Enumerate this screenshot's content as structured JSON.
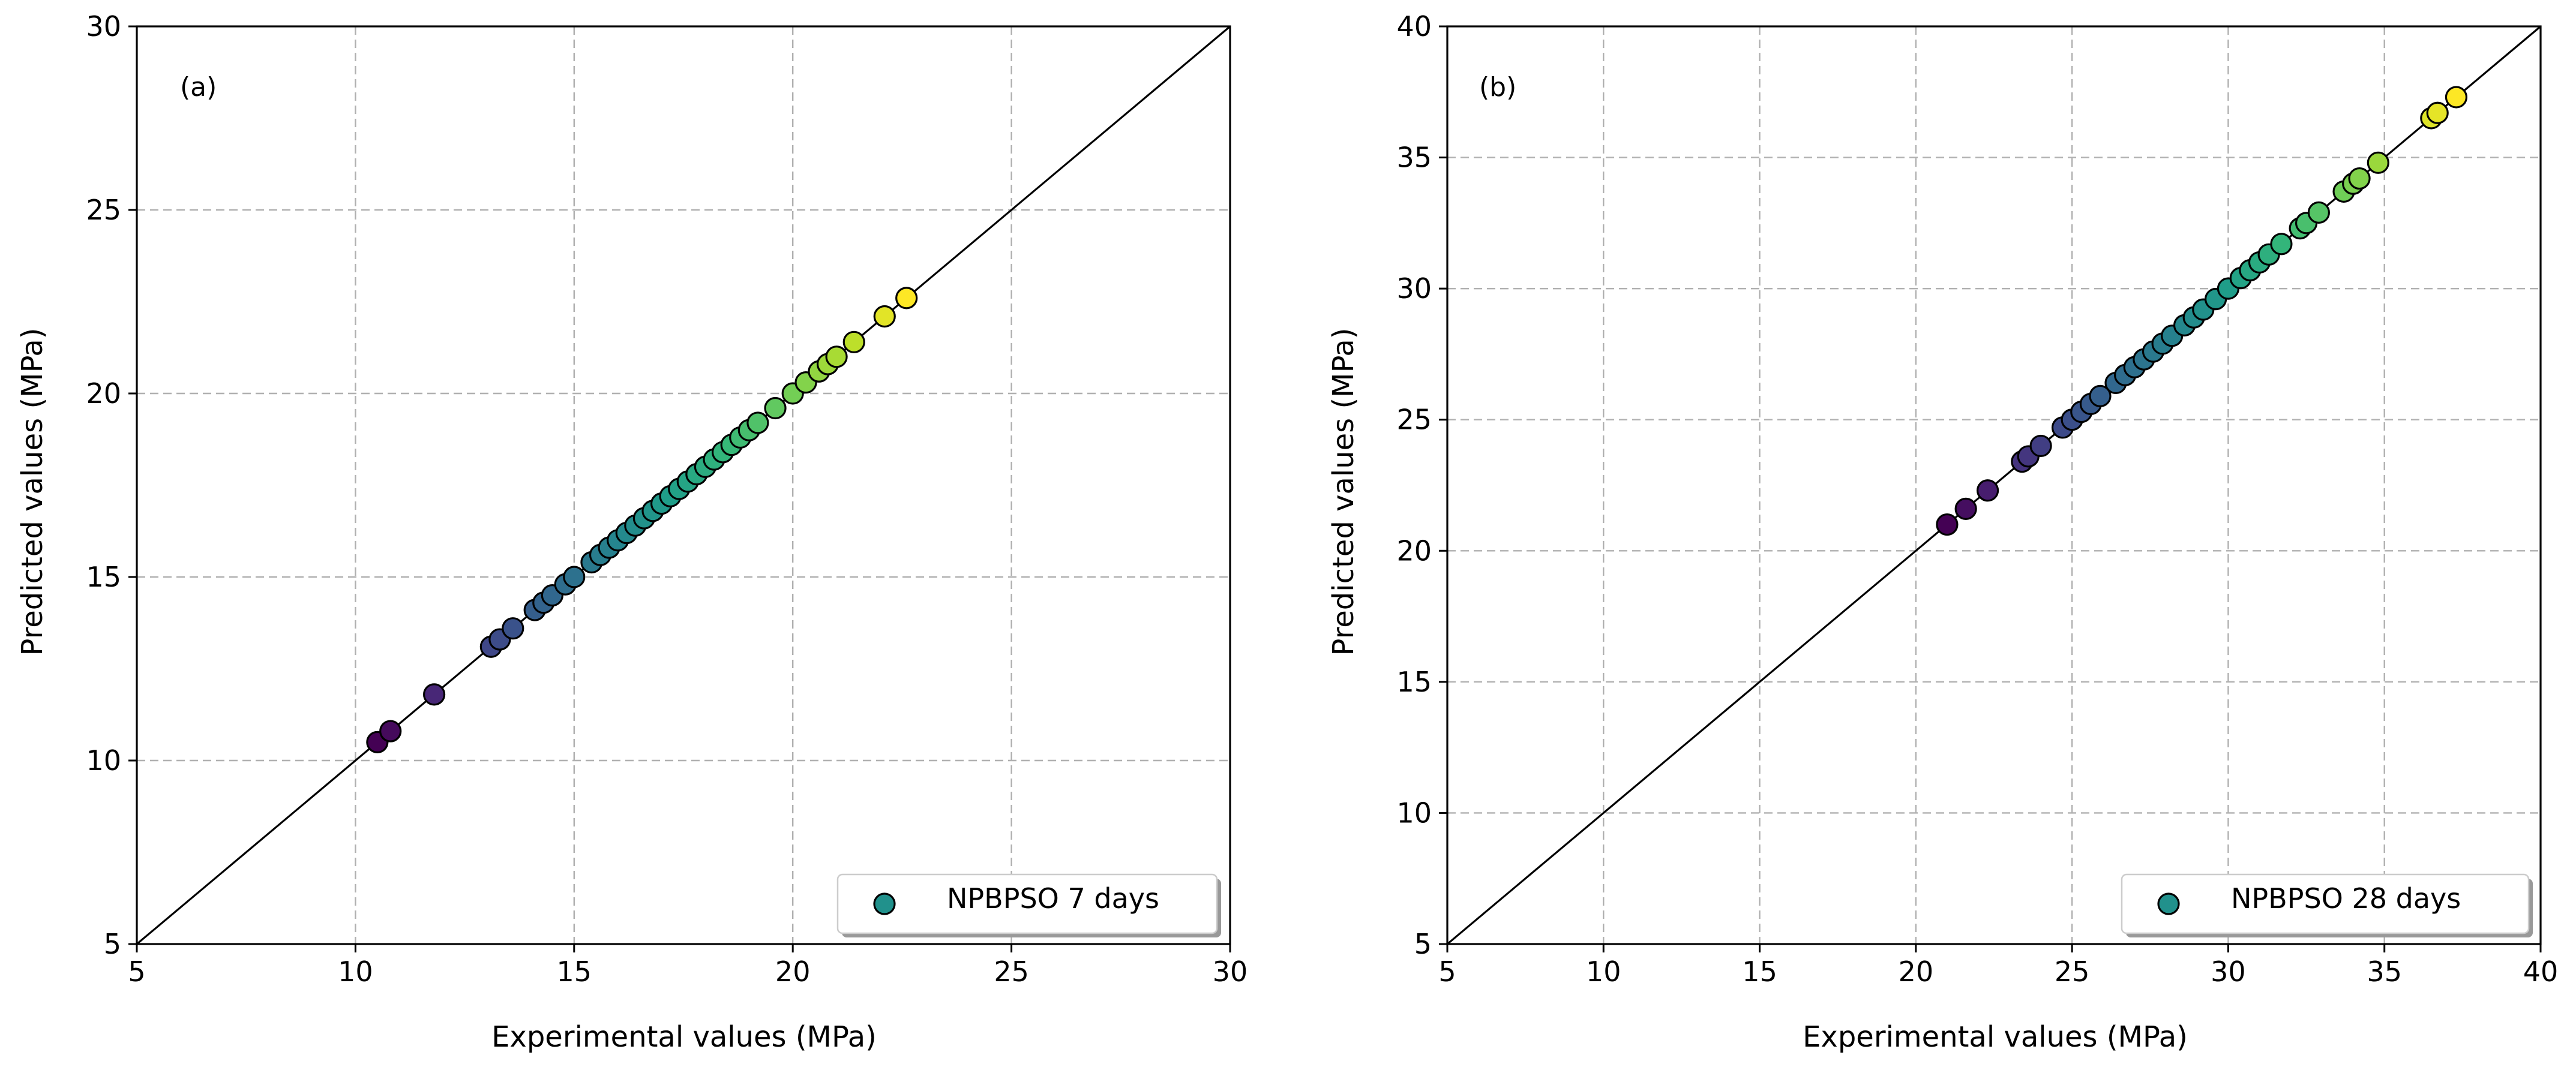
{
  "chart_data": [
    {
      "type": "scatter",
      "panel_label": "(a)",
      "title": "",
      "xlabel": "Experimental values (MPa)",
      "ylabel": "Predicted values (MPa)",
      "xlim": [
        5,
        30
      ],
      "ylim": [
        5,
        30
      ],
      "xticks": [
        5,
        10,
        15,
        20,
        25,
        30
      ],
      "yticks": [
        5,
        10,
        15,
        20,
        25,
        30
      ],
      "grid": true,
      "reference_line": "y = x",
      "legend": {
        "label": "NPBPSO 7 days",
        "position": "lower-right",
        "color": "#21918c"
      },
      "colormap": "viridis",
      "series": [
        {
          "name": "NPBPSO 7 days",
          "x": [
            10.5,
            10.8,
            11.8,
            13.1,
            13.3,
            13.6,
            14.1,
            14.3,
            14.5,
            14.8,
            15.0,
            15.4,
            15.6,
            15.8,
            16.0,
            16.2,
            16.4,
            16.6,
            16.8,
            17.0,
            17.2,
            17.4,
            17.6,
            17.8,
            18.0,
            18.2,
            18.4,
            18.6,
            18.8,
            19.0,
            19.2,
            19.6,
            20.0,
            20.3,
            20.6,
            20.8,
            21.0,
            21.4,
            22.1,
            22.6
          ],
          "y": [
            10.5,
            10.8,
            11.8,
            13.1,
            13.3,
            13.6,
            14.1,
            14.3,
            14.5,
            14.8,
            15.0,
            15.4,
            15.6,
            15.8,
            16.0,
            16.2,
            16.4,
            16.6,
            16.8,
            17.0,
            17.2,
            17.4,
            17.6,
            17.8,
            18.0,
            18.2,
            18.4,
            18.6,
            18.8,
            19.0,
            19.2,
            19.6,
            20.0,
            20.3,
            20.6,
            20.8,
            21.0,
            21.4,
            22.1,
            22.6
          ]
        }
      ]
    },
    {
      "type": "scatter",
      "panel_label": "(b)",
      "title": "",
      "xlabel": "Experimental values (MPa)",
      "ylabel": "Predicted values (MPa)",
      "xlim": [
        5,
        40
      ],
      "ylim": [
        5,
        40
      ],
      "xticks": [
        5,
        10,
        15,
        20,
        25,
        30,
        35,
        40
      ],
      "yticks": [
        5,
        10,
        15,
        20,
        25,
        30,
        35,
        40
      ],
      "grid": true,
      "reference_line": "y = x",
      "legend": {
        "label": "NPBPSO 28 days",
        "position": "lower-right",
        "color": "#21918c"
      },
      "colormap": "viridis",
      "series": [
        {
          "name": "NPBPSO 28 days",
          "x": [
            21.0,
            21.6,
            22.3,
            23.4,
            23.6,
            24.0,
            24.7,
            25.0,
            25.3,
            25.6,
            25.9,
            26.4,
            26.7,
            27.0,
            27.3,
            27.6,
            27.9,
            28.2,
            28.6,
            28.9,
            29.2,
            29.6,
            30.0,
            30.4,
            30.7,
            31.0,
            31.3,
            31.7,
            32.3,
            32.5,
            32.9,
            33.7,
            34.0,
            34.2,
            34.8,
            36.5,
            36.7,
            37.3
          ],
          "y": [
            21.0,
            21.6,
            22.3,
            23.4,
            23.6,
            24.0,
            24.7,
            25.0,
            25.3,
            25.6,
            25.9,
            26.4,
            26.7,
            27.0,
            27.3,
            27.6,
            27.9,
            28.2,
            28.6,
            28.9,
            29.2,
            29.6,
            30.0,
            30.4,
            30.7,
            31.0,
            31.3,
            31.7,
            32.3,
            32.5,
            32.9,
            33.7,
            34.0,
            34.2,
            34.8,
            36.5,
            36.7,
            37.3
          ]
        }
      ]
    }
  ]
}
